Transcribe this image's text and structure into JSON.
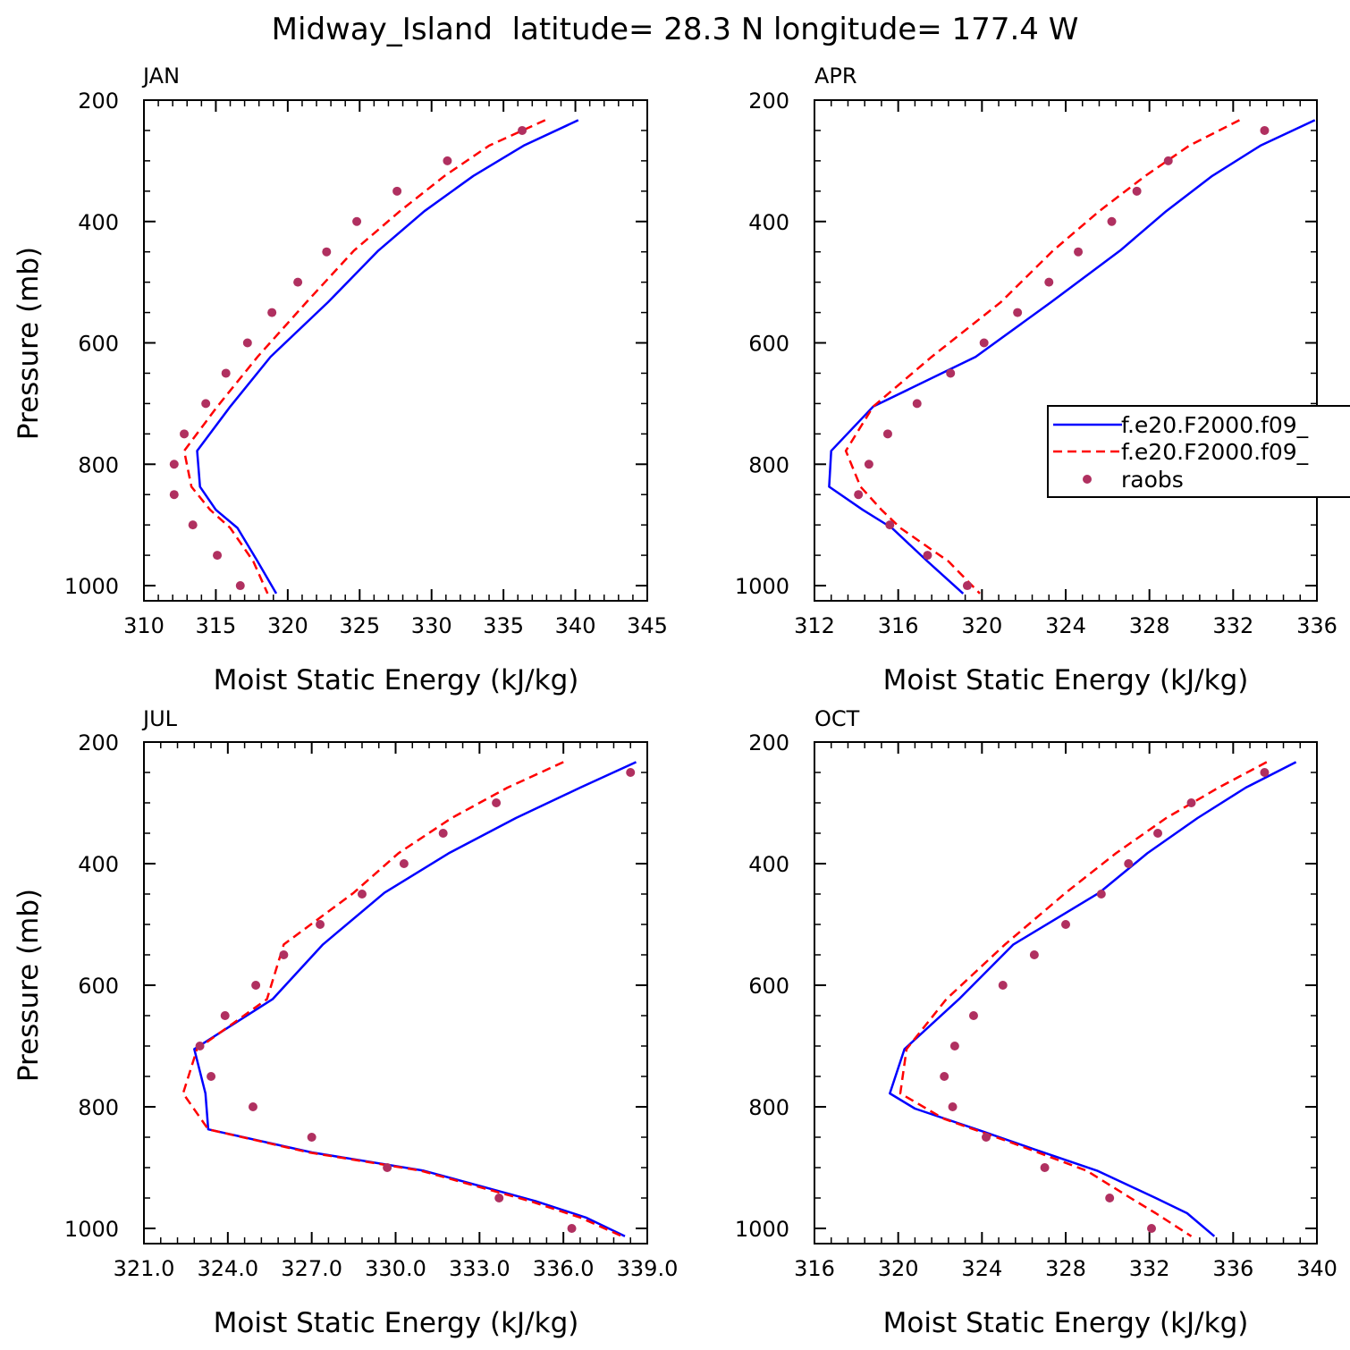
{
  "title": "Midway_Island  latitude= 28.3 N longitude= 177.4 W",
  "colors": {
    "model1": "#0000ff",
    "model2": "#ff0000",
    "obs": "#b03060",
    "axis": "#000000"
  },
  "legend": {
    "placement": "right-center of APR panel (clipped)",
    "entries": [
      {
        "label": "f.e20.F2000.f09_",
        "style": "solid",
        "color": "#0000ff"
      },
      {
        "label": "f.e20.F2000.f09_",
        "style": "dashed",
        "color": "#ff0000"
      },
      {
        "label": "raobs",
        "style": "dot",
        "color": "#b03060"
      }
    ]
  },
  "chart_data": [
    {
      "type": "line",
      "panel": "JAN",
      "xlabel": "Moist Static Energy (kJ/kg)",
      "ylabel": "Pressure (mb)",
      "xlim": [
        310,
        345
      ],
      "ylim": [
        1025,
        200
      ],
      "xticks": [
        310,
        315,
        320,
        325,
        330,
        335,
        340,
        345
      ],
      "xtick_labels": [
        "310",
        "315",
        "320",
        "325",
        "330",
        "335",
        "340",
        "345"
      ],
      "yticks": [
        200,
        400,
        600,
        800,
        1000
      ],
      "ytick_labels": [
        "200",
        "400",
        "600",
        "800",
        "1000"
      ],
      "series": [
        {
          "name": "f.e20.F2000.f09_ (solid)",
          "style": "solid",
          "points": [
            [
              340.2,
              233
            ],
            [
              336.4,
              275
            ],
            [
              332.9,
              325
            ],
            [
              329.5,
              383
            ],
            [
              326.3,
              448
            ],
            [
              322.8,
              533
            ],
            [
              318.8,
              623
            ],
            [
              316.0,
              705
            ],
            [
              313.7,
              778
            ],
            [
              313.9,
              837
            ],
            [
              315.0,
              875
            ],
            [
              316.5,
              905
            ],
            [
              317.9,
              960
            ],
            [
              319.2,
              1013
            ]
          ]
        },
        {
          "name": "f.e20.F2000.f09_ (dashed)",
          "style": "dashed",
          "points": [
            [
              337.9,
              233
            ],
            [
              334.0,
              275
            ],
            [
              330.9,
              325
            ],
            [
              327.8,
              383
            ],
            [
              324.6,
              448
            ],
            [
              321.3,
              533
            ],
            [
              317.9,
              623
            ],
            [
              315.1,
              705
            ],
            [
              312.8,
              778
            ],
            [
              313.3,
              837
            ],
            [
              314.6,
              875
            ],
            [
              316.0,
              905
            ],
            [
              317.6,
              960
            ],
            [
              318.6,
              1013
            ]
          ]
        },
        {
          "name": "raobs",
          "style": "dots",
          "points": [
            [
              336.3,
              250
            ],
            [
              331.1,
              300
            ],
            [
              327.6,
              350
            ],
            [
              324.8,
              400
            ],
            [
              322.7,
              450
            ],
            [
              320.7,
              500
            ],
            [
              318.9,
              550
            ],
            [
              317.2,
              600
            ],
            [
              315.7,
              650
            ],
            [
              314.3,
              700
            ],
            [
              312.8,
              750
            ],
            [
              312.1,
              800
            ],
            [
              312.1,
              850
            ],
            [
              313.4,
              900
            ],
            [
              315.1,
              950
            ],
            [
              316.7,
              1000
            ]
          ]
        }
      ]
    },
    {
      "type": "line",
      "panel": "APR",
      "xlabel": "Moist Static Energy (kJ/kg)",
      "ylabel": "",
      "xlim": [
        312,
        336
      ],
      "ylim": [
        1025,
        200
      ],
      "xticks": [
        312,
        316,
        320,
        324,
        328,
        332,
        336
      ],
      "xtick_labels": [
        "312",
        "316",
        "320",
        "324",
        "328",
        "332",
        "336"
      ],
      "yticks": [
        200,
        400,
        600,
        800,
        1000
      ],
      "ytick_labels": [
        "200",
        "400",
        "600",
        "800",
        "1000"
      ],
      "series": [
        {
          "name": "f.e20.F2000.f09_ (solid)",
          "style": "solid",
          "points": [
            [
              335.9,
              233
            ],
            [
              333.3,
              275
            ],
            [
              331.0,
              325
            ],
            [
              328.8,
              383
            ],
            [
              326.6,
              448
            ],
            [
              323.3,
              533
            ],
            [
              319.7,
              623
            ],
            [
              314.8,
              705
            ],
            [
              312.8,
              778
            ],
            [
              312.7,
              837
            ],
            [
              314.3,
              875
            ],
            [
              315.7,
              905
            ],
            [
              317.4,
              960
            ],
            [
              319.1,
              1013
            ]
          ]
        },
        {
          "name": "f.e20.F2000.f09_ (dashed)",
          "style": "dashed",
          "points": [
            [
              332.3,
              233
            ],
            [
              329.9,
              275
            ],
            [
              327.8,
              325
            ],
            [
              325.6,
              383
            ],
            [
              323.4,
              448
            ],
            [
              320.9,
              533
            ],
            [
              317.6,
              623
            ],
            [
              314.8,
              705
            ],
            [
              313.5,
              778
            ],
            [
              314.2,
              837
            ],
            [
              315.2,
              875
            ],
            [
              316.1,
              905
            ],
            [
              318.4,
              960
            ],
            [
              319.9,
              1013
            ]
          ]
        },
        {
          "name": "raobs",
          "style": "dots",
          "points": [
            [
              333.5,
              250
            ],
            [
              328.9,
              300
            ],
            [
              327.4,
              350
            ],
            [
              326.2,
              400
            ],
            [
              324.6,
              450
            ],
            [
              323.2,
              500
            ],
            [
              321.7,
              550
            ],
            [
              320.1,
              600
            ],
            [
              318.5,
              650
            ],
            [
              316.9,
              700
            ],
            [
              315.5,
              750
            ],
            [
              314.6,
              800
            ],
            [
              314.1,
              850
            ],
            [
              315.6,
              900
            ],
            [
              317.4,
              950
            ],
            [
              319.3,
              1000
            ]
          ]
        }
      ]
    },
    {
      "type": "line",
      "panel": "JUL",
      "xlabel": "Moist Static Energy (kJ/kg)",
      "ylabel": "Pressure (mb)",
      "xlim": [
        321.0,
        339.0
      ],
      "ylim": [
        1025,
        200
      ],
      "xticks": [
        321,
        324,
        327,
        330,
        333,
        336,
        339
      ],
      "xtick_labels": [
        "321.0",
        "324.0",
        "327.0",
        "330.0",
        "333.0",
        "336.0",
        "339.0"
      ],
      "yticks": [
        200,
        400,
        600,
        800,
        1000
      ],
      "ytick_labels": [
        "200",
        "400",
        "600",
        "800",
        "1000"
      ],
      "series": [
        {
          "name": "f.e20.F2000.f09_ (solid)",
          "style": "solid",
          "points": [
            [
              338.6,
              233
            ],
            [
              336.6,
              275
            ],
            [
              334.3,
              325
            ],
            [
              331.9,
              383
            ],
            [
              329.6,
              448
            ],
            [
              327.4,
              533
            ],
            [
              325.6,
              623
            ],
            [
              322.8,
              705
            ],
            [
              323.2,
              778
            ],
            [
              323.3,
              837
            ],
            [
              327.0,
              875
            ],
            [
              331.0,
              905
            ],
            [
              335.0,
              955
            ],
            [
              336.8,
              982
            ],
            [
              338.2,
              1013
            ]
          ]
        },
        {
          "name": "f.e20.F2000.f09_ (dashed)",
          "style": "dashed",
          "points": [
            [
              336.0,
              233
            ],
            [
              334.0,
              275
            ],
            [
              332.0,
              325
            ],
            [
              330.1,
              383
            ],
            [
              328.5,
              448
            ],
            [
              326.0,
              533
            ],
            [
              325.4,
              623
            ],
            [
              322.9,
              705
            ],
            [
              322.4,
              778
            ],
            [
              323.3,
              837
            ],
            [
              326.9,
              875
            ],
            [
              330.9,
              905
            ],
            [
              334.8,
              955
            ],
            [
              336.6,
              982
            ],
            [
              338.1,
              1013
            ]
          ]
        },
        {
          "name": "raobs",
          "style": "dots",
          "points": [
            [
              338.4,
              250
            ],
            [
              333.6,
              300
            ],
            [
              331.7,
              350
            ],
            [
              330.3,
              400
            ],
            [
              328.8,
              450
            ],
            [
              327.3,
              500
            ],
            [
              326.0,
              550
            ],
            [
              325.0,
              600
            ],
            [
              323.9,
              650
            ],
            [
              323.0,
              700
            ],
            [
              323.4,
              750
            ],
            [
              324.9,
              800
            ],
            [
              327.0,
              850
            ],
            [
              329.7,
              900
            ],
            [
              333.7,
              950
            ],
            [
              336.3,
              1000
            ]
          ]
        }
      ]
    },
    {
      "type": "line",
      "panel": "OCT",
      "xlabel": "Moist Static Energy (kJ/kg)",
      "ylabel": "",
      "xlim": [
        316,
        340
      ],
      "ylim": [
        1025,
        200
      ],
      "xticks": [
        316,
        320,
        324,
        328,
        332,
        336,
        340
      ],
      "xtick_labels": [
        "316",
        "320",
        "324",
        "328",
        "332",
        "336",
        "340"
      ],
      "yticks": [
        200,
        400,
        600,
        800,
        1000
      ],
      "ytick_labels": [
        "200",
        "400",
        "600",
        "800",
        "1000"
      ],
      "series": [
        {
          "name": "f.e20.F2000.f09_ (solid)",
          "style": "solid",
          "points": [
            [
              339.0,
              233
            ],
            [
              336.6,
              275
            ],
            [
              334.3,
              325
            ],
            [
              331.9,
              383
            ],
            [
              329.6,
              448
            ],
            [
              325.5,
              533
            ],
            [
              322.9,
              623
            ],
            [
              320.3,
              705
            ],
            [
              319.6,
              778
            ],
            [
              320.8,
              803
            ],
            [
              324.0,
              840
            ],
            [
              326.5,
              870
            ],
            [
              329.5,
              905
            ],
            [
              332.3,
              950
            ],
            [
              333.8,
              975
            ],
            [
              335.1,
              1013
            ]
          ]
        },
        {
          "name": "f.e20.F2000.f09_ (dashed)",
          "style": "dashed",
          "points": [
            [
              337.6,
              233
            ],
            [
              335.3,
              275
            ],
            [
              332.8,
              325
            ],
            [
              330.4,
              383
            ],
            [
              328.0,
              448
            ],
            [
              325.1,
              533
            ],
            [
              322.3,
              623
            ],
            [
              320.4,
              705
            ],
            [
              320.1,
              778
            ],
            [
              322.2,
              820
            ],
            [
              325.5,
              860
            ],
            [
              329.0,
              905
            ],
            [
              331.1,
              950
            ],
            [
              332.3,
              975
            ],
            [
              334.0,
              1013
            ]
          ]
        },
        {
          "name": "raobs",
          "style": "dots",
          "points": [
            [
              337.5,
              250
            ],
            [
              334.0,
              300
            ],
            [
              332.4,
              350
            ],
            [
              331.0,
              400
            ],
            [
              329.7,
              450
            ],
            [
              328.0,
              500
            ],
            [
              326.5,
              550
            ],
            [
              325.0,
              600
            ],
            [
              323.6,
              650
            ],
            [
              322.7,
              700
            ],
            [
              322.2,
              750
            ],
            [
              322.6,
              800
            ],
            [
              324.2,
              850
            ],
            [
              327.0,
              900
            ],
            [
              330.1,
              950
            ],
            [
              332.1,
              1000
            ]
          ]
        }
      ]
    }
  ]
}
